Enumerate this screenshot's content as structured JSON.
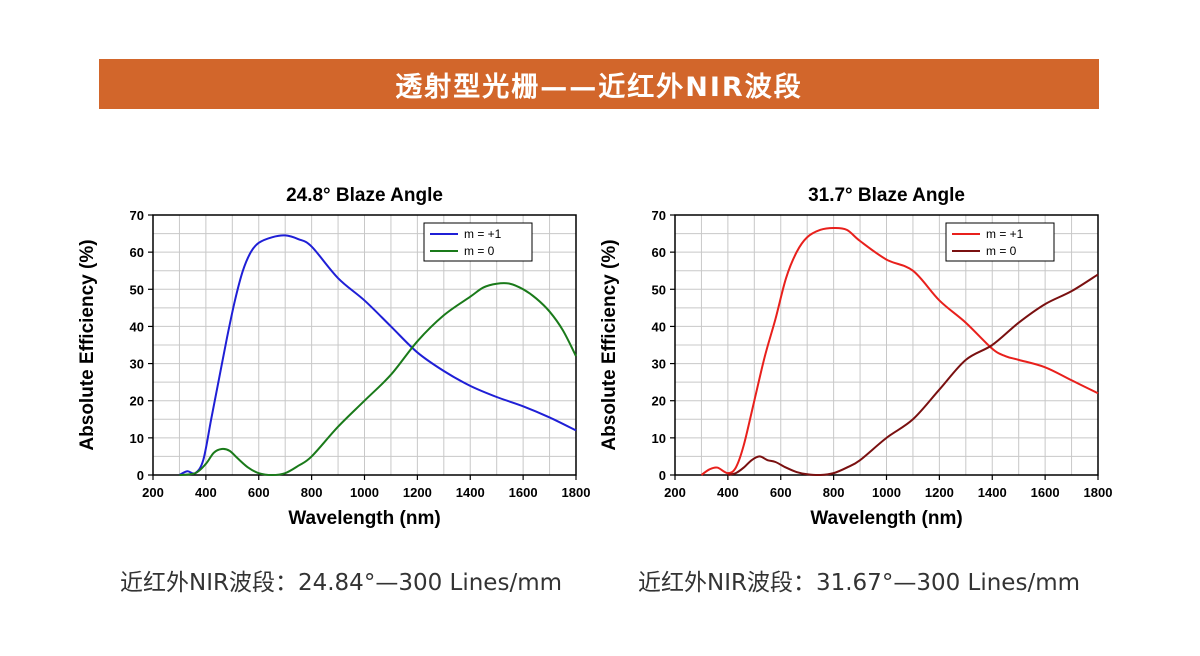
{
  "banner": {
    "title": "透射型光栅——近红外NIR波段"
  },
  "captions": [
    "近红外NIR波段：24.84°—300 Lines/mm",
    "近红外NIR波段：31.67°—300 Lines/mm"
  ],
  "chart_data": [
    {
      "type": "line",
      "title": "24.8° Blaze Angle",
      "xlabel": "Wavelength (nm)",
      "ylabel": "Absolute Efficiency (%)",
      "xlim": [
        200,
        1800
      ],
      "ylim": [
        0,
        70
      ],
      "xticks": [
        200,
        400,
        600,
        800,
        1000,
        1200,
        1400,
        1600,
        1800
      ],
      "yticks": [
        0,
        10,
        20,
        30,
        40,
        50,
        60,
        70
      ],
      "grid": true,
      "legend_position": "top-right",
      "series": [
        {
          "name": "m = +1",
          "color": "#1f1fd6",
          "x": [
            300,
            330,
            360,
            390,
            420,
            450,
            480,
            510,
            540,
            570,
            600,
            650,
            700,
            750,
            800,
            900,
            1000,
            1100,
            1200,
            1300,
            1400,
            1500,
            1600,
            1700,
            1800
          ],
          "y": [
            0,
            1,
            0.5,
            4,
            15,
            26,
            37,
            47,
            55,
            60,
            62.5,
            64,
            64.5,
            63.5,
            61.5,
            53,
            47,
            40,
            33,
            28,
            24,
            21,
            18.5,
            15.5,
            12
          ]
        },
        {
          "name": "m = 0",
          "color": "#1a7a1a",
          "x": [
            300,
            360,
            400,
            430,
            460,
            490,
            520,
            560,
            600,
            650,
            700,
            750,
            800,
            900,
            1000,
            1100,
            1200,
            1300,
            1400,
            1450,
            1500,
            1550,
            1600,
            1650,
            1700,
            1750,
            1800
          ],
          "y": [
            0,
            0.5,
            3,
            6,
            7,
            6.5,
            4.5,
            2,
            0.5,
            0,
            0.5,
            2.5,
            5,
            13,
            20,
            27,
            36,
            43,
            48,
            50.5,
            51.5,
            51.5,
            50,
            47.5,
            44,
            39,
            32
          ]
        }
      ]
    },
    {
      "type": "line",
      "title": "31.7° Blaze Angle",
      "xlabel": "Wavelength (nm)",
      "ylabel": "Absolute Efficiency (%)",
      "xlim": [
        200,
        1800
      ],
      "ylim": [
        0,
        70
      ],
      "xticks": [
        200,
        400,
        600,
        800,
        1000,
        1200,
        1400,
        1600,
        1800
      ],
      "yticks": [
        0,
        10,
        20,
        30,
        40,
        50,
        60,
        70
      ],
      "grid": true,
      "legend_position": "top-right",
      "series": [
        {
          "name": "m = +1",
          "color": "#e8201c",
          "x": [
            300,
            330,
            360,
            400,
            430,
            460,
            500,
            540,
            580,
            620,
            660,
            700,
            750,
            800,
            850,
            900,
            1000,
            1100,
            1200,
            1300,
            1400,
            1450,
            1500,
            1600,
            1700,
            1800
          ],
          "y": [
            0,
            1.5,
            2,
            0.5,
            2,
            8,
            20,
            32,
            42,
            53,
            60,
            64,
            66,
            66.5,
            66,
            63,
            58,
            55,
            47,
            41,
            34,
            32,
            31,
            29,
            25.5,
            22
          ]
        },
        {
          "name": "m = 0",
          "color": "#7a1010",
          "x": [
            400,
            430,
            460,
            490,
            520,
            550,
            580,
            620,
            660,
            700,
            750,
            800,
            850,
            900,
            1000,
            1100,
            1200,
            1300,
            1400,
            1500,
            1600,
            1700,
            1800
          ],
          "y": [
            0,
            0.5,
            2,
            4,
            5,
            4,
            3.5,
            2,
            0.8,
            0.2,
            0,
            0.5,
            2,
            4,
            10,
            15,
            23,
            31,
            35,
            41,
            46,
            49.5,
            54
          ]
        }
      ]
    }
  ]
}
